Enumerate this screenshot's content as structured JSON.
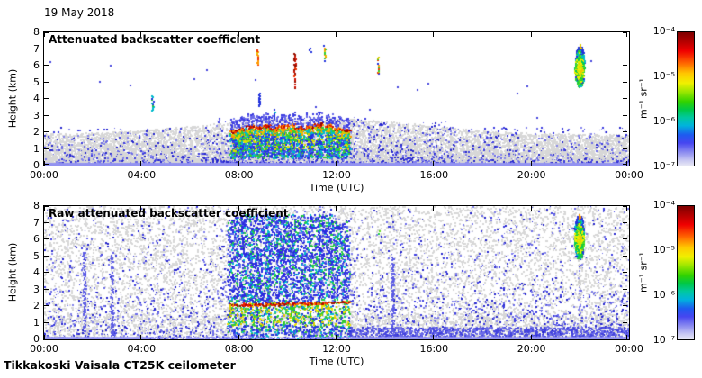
{
  "page": {
    "date_label": "19 May 2018",
    "footer": "Tikkakoski Vaisala CT25K ceilometer"
  },
  "chart_data": [
    {
      "type": "heatmap",
      "title": "Attenuated backscatter coefficient",
      "xlabel": "Time (UTC)",
      "ylabel": "Height (km)",
      "x_ticks": [
        "00:00",
        "04:00",
        "08:00",
        "12:00",
        "16:00",
        "20:00",
        "00:00"
      ],
      "x_range_hours": [
        0,
        24
      ],
      "y_ticks": [
        "0",
        "1",
        "2",
        "3",
        "4",
        "5",
        "6",
        "7",
        "8"
      ],
      "y_range_km": [
        0,
        8
      ],
      "grid": false,
      "legend": false,
      "colorbar": {
        "label": "m⁻¹ sr⁻¹",
        "tick_labels": [
          "10⁻⁴",
          "10⁻⁵",
          "10⁻⁶",
          "10⁻⁷"
        ],
        "scale": "log",
        "range": [
          1e-07,
          0.0001
        ],
        "gradient": [
          [
            "#7d0000",
            0
          ],
          [
            "#b40000",
            7
          ],
          [
            "#f00000",
            14
          ],
          [
            "#ff6400",
            23
          ],
          [
            "#ffc800",
            31
          ],
          [
            "#f0f000",
            38
          ],
          [
            "#96e600",
            45
          ],
          [
            "#32d200",
            52
          ],
          [
            "#00c846",
            58
          ],
          [
            "#00c8a0",
            64
          ],
          [
            "#00b4dc",
            70
          ],
          [
            "#1e5af0",
            77
          ],
          [
            "#4646f0",
            83
          ],
          [
            "#8c8cf0",
            90
          ],
          [
            "#c8c8f2",
            96
          ],
          [
            "#e6e6f4",
            100
          ]
        ]
      },
      "features": {
        "surface_band_km": [
          0,
          0.16
        ],
        "noise": {
          "gray_top_km": 2.4,
          "blue_top_km": 3.0
        },
        "plumes": [
          {
            "hour": 7.8,
            "top": 2.15
          },
          {
            "hour": 8.12,
            "top": 2.3
          },
          {
            "hour": 8.45,
            "top": 2.45
          },
          {
            "hour": 8.8,
            "top": 2.4
          },
          {
            "hour": 9.12,
            "top": 2.5
          },
          {
            "hour": 9.45,
            "top": 2.3
          },
          {
            "hour": 9.8,
            "top": 2.45
          },
          {
            "hour": 10.15,
            "top": 2.5
          },
          {
            "hour": 10.5,
            "top": 2.35
          },
          {
            "hour": 10.9,
            "top": 2.45
          },
          {
            "hour": 11.3,
            "top": 2.55
          },
          {
            "hour": 11.7,
            "top": 2.5
          },
          {
            "hour": 12.05,
            "top": 2.3
          },
          {
            "hour": 12.38,
            "top": 2.2
          }
        ],
        "streaks": [
          {
            "hour": 4.45,
            "km": [
              3.35,
              4.25
            ],
            "colors": [
              "#22bb44",
              "#2233dd",
              "#00bbcc"
            ]
          },
          {
            "hour": 4.8,
            "km": [
              5.7,
              5.85
            ],
            "colors": [
              "#ee3300"
            ]
          },
          {
            "hour": 8.75,
            "km": [
              6.1,
              6.95
            ],
            "colors": [
              "#ddcc00",
              "#ff9900",
              "#ee3300"
            ]
          },
          {
            "hour": 8.82,
            "km": [
              3.6,
              4.4
            ],
            "colors": [
              "#2233dd"
            ]
          },
          {
            "hour": 9.45,
            "km": [
              2.9,
              3.4
            ],
            "colors": [
              "#2233dd",
              "#00bbcc"
            ]
          },
          {
            "hour": 10.28,
            "km": [
              4.7,
              6.75
            ],
            "colors": [
              "#cc1100",
              "#ee3300",
              "#991100"
            ]
          },
          {
            "hour": 10.9,
            "km": [
              6.85,
              7.1
            ],
            "colors": [
              "#2233dd"
            ]
          },
          {
            "hour": 11.5,
            "km": [
              6.3,
              7.25
            ],
            "colors": [
              "#ddcc00",
              "#33cc33",
              "#2233dd",
              "#ff9900"
            ]
          },
          {
            "hour": 13.7,
            "km": [
              5.5,
              6.6
            ],
            "colors": [
              "#ddcc00",
              "#ee3300",
              "#33cc33",
              "#2233dd",
              "#ff9900"
            ]
          }
        ],
        "cloud": {
          "hour": 21.97,
          "km": [
            4.75,
            7.15
          ]
        }
      }
    },
    {
      "type": "heatmap",
      "title": "Raw attenuated backscatter coefficient",
      "xlabel": "Time (UTC)",
      "ylabel": "Height (km)",
      "x_ticks": [
        "00:00",
        "04:00",
        "08:00",
        "12:00",
        "16:00",
        "20:00",
        "00:00"
      ],
      "x_range_hours": [
        0,
        24
      ],
      "y_ticks": [
        "0",
        "1",
        "2",
        "3",
        "4",
        "5",
        "6",
        "7",
        "8"
      ],
      "y_range_km": [
        0,
        8
      ],
      "grid": false,
      "legend": false,
      "colorbar": {
        "label": "m⁻¹ sr⁻¹",
        "tick_labels": [
          "10⁻⁴",
          "10⁻⁵",
          "10⁻⁶",
          "10⁻⁷"
        ],
        "scale": "log",
        "range": [
          1e-07,
          0.0001
        ],
        "gradient": [
          [
            "#7d0000",
            0
          ],
          [
            "#b40000",
            7
          ],
          [
            "#f00000",
            14
          ],
          [
            "#ff6400",
            23
          ],
          [
            "#ffc800",
            31
          ],
          [
            "#f0f000",
            38
          ],
          [
            "#96e600",
            45
          ],
          [
            "#32d200",
            52
          ],
          [
            "#00c846",
            58
          ],
          [
            "#00c8a0",
            64
          ],
          [
            "#00b4dc",
            70
          ],
          [
            "#1e5af0",
            77
          ],
          [
            "#4646f0",
            83
          ],
          [
            "#8c8cf0",
            90
          ],
          [
            "#c8c8f2",
            96
          ],
          [
            "#e6e6f4",
            100
          ]
        ]
      },
      "features": {
        "surface_band_km": [
          0,
          0.15
        ],
        "stripes": [
          {
            "hour": 7.62,
            "w": 0.1,
            "top": 7.2
          },
          {
            "hour": 7.82,
            "w": 0.12,
            "top": 7.4
          },
          {
            "hour": 8.05,
            "w": 0.16,
            "top": 7.5
          },
          {
            "hour": 8.33,
            "w": 0.22,
            "top": 7.5
          },
          {
            "hour": 8.63,
            "w": 0.18,
            "top": 7.4
          },
          {
            "hour": 8.97,
            "w": 0.3,
            "top": 7.5
          },
          {
            "hour": 9.37,
            "w": 0.26,
            "top": 7.5
          },
          {
            "hour": 9.73,
            "w": 0.18,
            "top": 7.4
          },
          {
            "hour": 10.06,
            "w": 0.22,
            "top": 7.5
          },
          {
            "hour": 10.43,
            "w": 0.26,
            "top": 7.5
          },
          {
            "hour": 10.8,
            "w": 0.16,
            "top": 7.4
          },
          {
            "hour": 11.13,
            "w": 0.26,
            "top": 7.5
          },
          {
            "hour": 11.52,
            "w": 0.3,
            "top": 7.5
          },
          {
            "hour": 11.9,
            "w": 0.14,
            "top": 7.2
          },
          {
            "hour": 12.14,
            "w": 0.12,
            "top": 6.9
          },
          {
            "hour": 12.4,
            "w": 0.14,
            "top": 7.2
          }
        ],
        "boundary_line": {
          "hours": [
            7.68,
            12.62
          ],
          "km_start": 2.06,
          "km_slope": 0.035
        },
        "faint_columns": [
          1.65,
          2.78,
          14.3
        ],
        "green_specks": [
          {
            "hour": 13.72,
            "km": 6.35
          }
        ],
        "cloud": {
          "hour": 21.95,
          "km": [
            4.85,
            7.4
          ]
        },
        "band_segments": [
          {
            "hours": [
              0,
              4.35
            ],
            "solid": true
          },
          {
            "hours": [
              4.35,
              7.55
            ],
            "solid": false
          },
          {
            "hours": [
              7.55,
              12.6
            ],
            "solid": false
          },
          {
            "hours": [
              12.6,
              24
            ],
            "solid": true
          }
        ]
      }
    }
  ]
}
